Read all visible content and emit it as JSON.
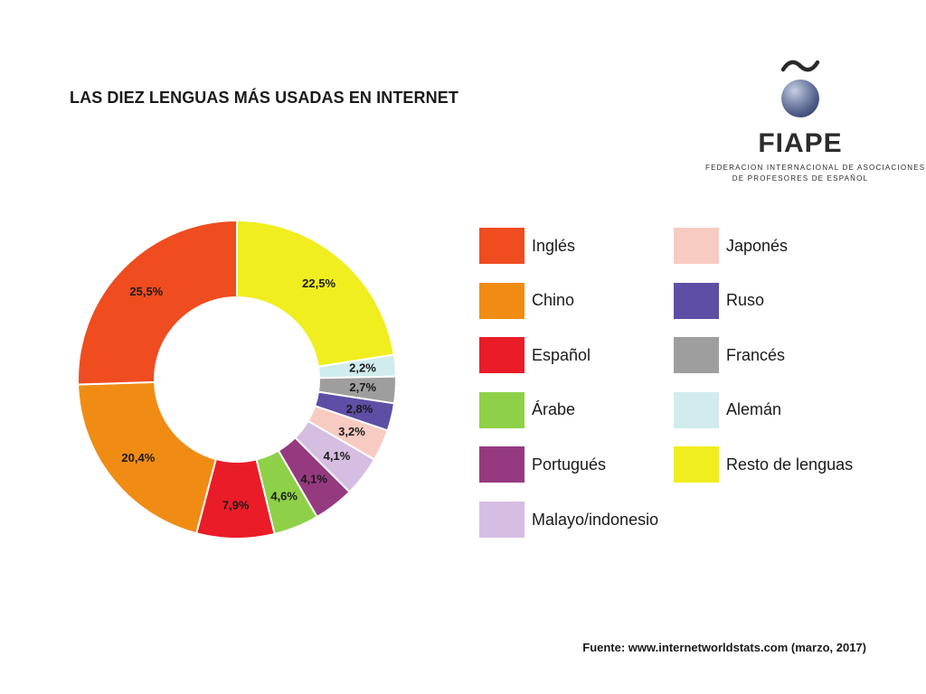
{
  "title": "LAS DIEZ LENGUAS MÁS USADAS EN INTERNET",
  "logo": {
    "brand": "FIAPE",
    "line1": "FEDERACION INTERNACIONAL DE ASOCIACIONES",
    "line2": "DE PROFESORES DE ESPAÑOL"
  },
  "source": "Fuente: www.internetworldstats.com (marzo, 2017)",
  "chart_data": {
    "type": "pie",
    "variant": "donut",
    "title": "LAS DIEZ LENGUAS MÁS USADAS EN INTERNET",
    "unit": "%",
    "slices": [
      {
        "name": "Resto de lenguas",
        "value": 22.5,
        "label": "22,5%",
        "color": "#f0ee1e"
      },
      {
        "name": "Alemán",
        "value": 2.2,
        "label": "2,2%",
        "color": "#d0ecec"
      },
      {
        "name": "Francés",
        "value": 2.7,
        "label": "2,7%",
        "color": "#9e9e9e"
      },
      {
        "name": "Ruso",
        "value": 2.8,
        "label": "2,8%",
        "color": "#5e4ea5"
      },
      {
        "name": "Japonés",
        "value": 3.2,
        "label": "3,2%",
        "color": "#f8cbc2"
      },
      {
        "name": "Malayo/indonesio",
        "value": 4.1,
        "label": "4,1%",
        "color": "#d6bde2"
      },
      {
        "name": "Portugués",
        "value": 4.1,
        "label": "4,1%",
        "color": "#963a80"
      },
      {
        "name": "Árabe",
        "value": 4.6,
        "label": "4,6%",
        "color": "#8ed148"
      },
      {
        "name": "Español",
        "value": 7.9,
        "label": "7,9%",
        "color": "#ea1c27"
      },
      {
        "name": "Chino",
        "value": 20.4,
        "label": "20,4%",
        "color": "#f08c14"
      },
      {
        "name": "Inglés",
        "value": 25.5,
        "label": "25,5%",
        "color": "#ef4c20"
      }
    ],
    "legend": {
      "placement": "right",
      "columns": [
        [
          "Inglés",
          "Chino",
          "Español",
          "Árabe",
          "Portugués",
          "Malayo/indonesio"
        ],
        [
          "Japonés",
          "Ruso",
          "Francés",
          "Alemán",
          "Resto de lenguas"
        ]
      ]
    }
  }
}
